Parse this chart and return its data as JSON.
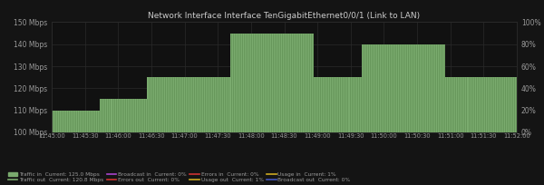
{
  "title": "Network Interface Interface TenGigabitEthernet0/0/1 (Link to LAN)",
  "bg_color": "#141414",
  "plot_bg_color": "#111111",
  "grid_color": "#2a2a2a",
  "text_color": "#9a9a9a",
  "title_color": "#cccccc",
  "ylim_left": [
    100,
    150
  ],
  "ylim_right": [
    0,
    100
  ],
  "y_left_ticks": [
    100,
    110,
    120,
    130,
    140,
    150
  ],
  "y_left_tick_labels": [
    "100 Mbps",
    "110 Mbps",
    "120 Mbps",
    "130 Mbps",
    "140 Mbps",
    "150 Mbps"
  ],
  "y_right_ticks": [
    0,
    20,
    40,
    60,
    80,
    100
  ],
  "y_right_tick_labels": [
    "0%",
    "20%",
    "40%",
    "60%",
    "80%",
    "100%"
  ],
  "x_tick_labels": [
    "11:45:00",
    "11:45:30",
    "11:46:00",
    "11:46:30",
    "11:47:00",
    "11:47:30",
    "11:48:00",
    "11:48:30",
    "11:49:00",
    "11:49:30",
    "11:50:00",
    "11:50:30",
    "11:51:00",
    "11:51:30",
    "11:52:00"
  ],
  "fill_color": "#7aab6e",
  "stripe_color": "#4a7a40",
  "traffic_in_steps": [
    110,
    110,
    110,
    110,
    110,
    110,
    110,
    110,
    115,
    115,
    115,
    115,
    115,
    115,
    115,
    115,
    125,
    125,
    125,
    125,
    125,
    125,
    125,
    125,
    125,
    125,
    125,
    125,
    125,
    125,
    145,
    145,
    145,
    145,
    145,
    145,
    145,
    145,
    145,
    145,
    145,
    145,
    145,
    145,
    125,
    125,
    125,
    125,
    125,
    125,
    125,
    125,
    140,
    140,
    140,
    140,
    140,
    140,
    140,
    140,
    140,
    140,
    140,
    140,
    140,
    140,
    125,
    125,
    125,
    125,
    125,
    125,
    125,
    125,
    125,
    125,
    125,
    125
  ],
  "legend_items": [
    {
      "label": "Traffic in  Current: 125.0 Mbps",
      "color": "#7aab6e",
      "type": "fill"
    },
    {
      "label": "Traffic out  Current: 120.8 Mbps",
      "color": "#7aab6e",
      "type": "line"
    },
    {
      "label": "Broadcast in  Current: 0%",
      "color": "#aa44cc",
      "type": "line"
    },
    {
      "label": "Errors out  Current: 0%",
      "color": "#cc3333",
      "type": "line"
    },
    {
      "label": "Errors in  Current: 0%",
      "color": "#cc3333",
      "type": "line"
    },
    {
      "label": "Usage out  Current: 1%",
      "color": "#ccaa22",
      "type": "line"
    },
    {
      "label": "Usage in  Current: 1%",
      "color": "#ccaa22",
      "type": "line"
    },
    {
      "label": "Broadcast out  Current: 0%",
      "color": "#4455bb",
      "type": "line"
    }
  ]
}
